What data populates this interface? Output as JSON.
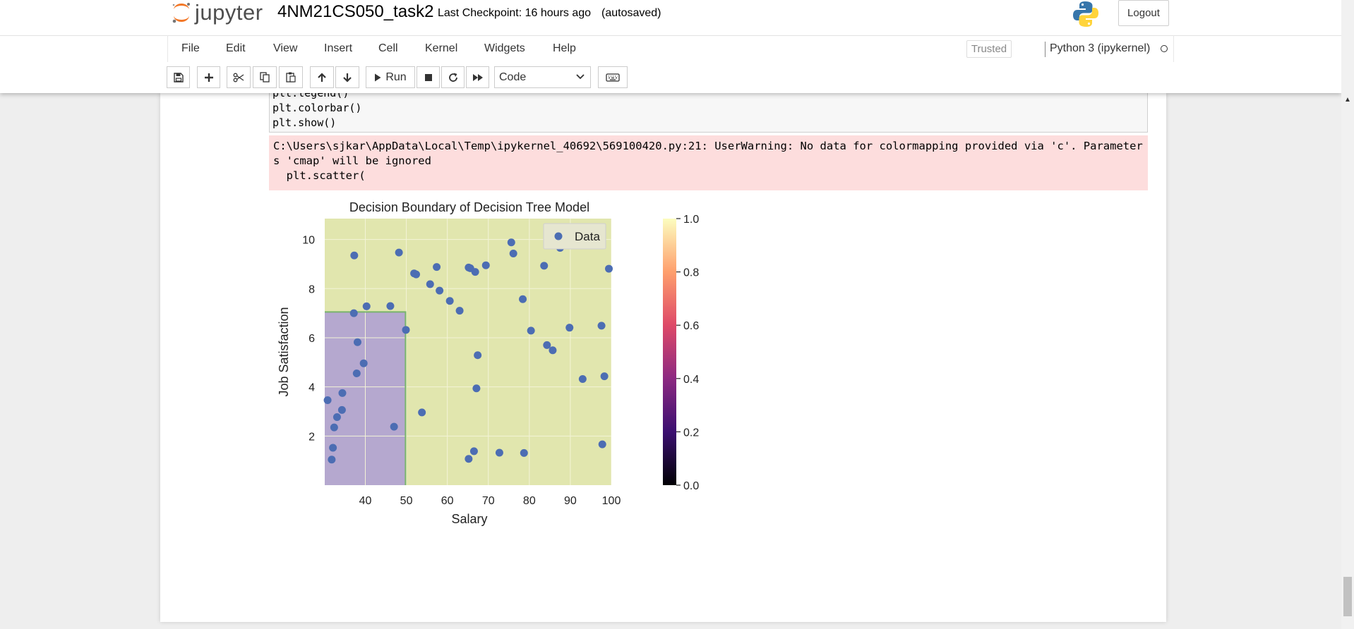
{
  "header": {
    "logo_text": "jupyter",
    "notebook_name": "4NM21CS050_task2",
    "checkpoint": "Last Checkpoint: 16 hours ago",
    "autosave": "(autosaved)",
    "logout_label": "Logout"
  },
  "menu": {
    "items": [
      "File",
      "Edit",
      "View",
      "Insert",
      "Cell",
      "Kernel",
      "Widgets",
      "Help"
    ],
    "trusted": "Trusted",
    "kernel": "Python 3 (ipykernel)"
  },
  "toolbar": {
    "run_label": "Run",
    "cell_type": "Code",
    "icons": [
      "save-icon",
      "plus-icon",
      "cut-icon",
      "copy-icon",
      "paste-icon",
      "arrow-up-icon",
      "arrow-down-icon",
      "run-icon",
      "stop-icon",
      "restart-icon",
      "fast-forward-icon",
      "keyboard-icon"
    ]
  },
  "cell": {
    "code_lines": [
      "plt.legend()",
      "plt.colorbar()",
      "plt.show()"
    ],
    "stderr": "C:\\Users\\sjkar\\AppData\\Local\\Temp\\ipykernel_40692\\569100420.py:21: UserWarning: No data for colormapping provided via 'c'. Parameters 'cmap' will be ignored\n  plt.scatter("
  },
  "chart_data": {
    "type": "scatter",
    "title": "Decision Boundary of Decision Tree Model",
    "xlabel": "Salary",
    "ylabel": "Job Satisfaction",
    "xlim": [
      30.1,
      100
    ],
    "ylim": [
      0,
      10.85
    ],
    "xticks": [
      40,
      50,
      60,
      70,
      80,
      90,
      100
    ],
    "yticks": [
      2,
      4,
      6,
      8,
      10
    ],
    "legend": {
      "label": "Data",
      "position": "upper right"
    },
    "grid": true,
    "regions": [
      {
        "x": [
          30.1,
          49.8
        ],
        "y": [
          0,
          7.05
        ],
        "color": "#b5a8cf"
      },
      {
        "x": [
          30.1,
          100
        ],
        "y": [
          0,
          10.85
        ],
        "color": "#e1e6ae"
      }
    ],
    "boundary_color": "#78b46b",
    "marker_color": "#4c6db3",
    "points": [
      [
        37.3,
        9.35
      ],
      [
        48.2,
        9.47
      ],
      [
        51.9,
        8.62
      ],
      [
        52.4,
        8.58
      ],
      [
        55.8,
        8.18
      ],
      [
        57.4,
        8.88
      ],
      [
        58.1,
        7.92
      ],
      [
        60.6,
        7.5
      ],
      [
        63.0,
        7.1
      ],
      [
        65.2,
        8.86
      ],
      [
        65.6,
        8.83
      ],
      [
        66.8,
        8.68
      ],
      [
        69.4,
        8.95
      ],
      [
        75.6,
        9.88
      ],
      [
        76.1,
        9.43
      ],
      [
        78.4,
        7.57
      ],
      [
        80.4,
        6.29
      ],
      [
        83.6,
        8.93
      ],
      [
        87.5,
        9.66
      ],
      [
        99.4,
        8.81
      ],
      [
        37.2,
        7.0
      ],
      [
        40.3,
        7.28
      ],
      [
        46.1,
        7.29
      ],
      [
        49.9,
        6.32
      ],
      [
        38.1,
        5.82
      ],
      [
        39.6,
        4.96
      ],
      [
        37.9,
        4.55
      ],
      [
        34.4,
        3.75
      ],
      [
        30.8,
        3.46
      ],
      [
        34.3,
        3.06
      ],
      [
        33.1,
        2.77
      ],
      [
        32.4,
        2.35
      ],
      [
        47.0,
        2.38
      ],
      [
        53.8,
        2.96
      ],
      [
        32.1,
        1.52
      ],
      [
        31.8,
        1.04
      ],
      [
        65.2,
        1.07
      ],
      [
        66.5,
        1.38
      ],
      [
        72.7,
        1.32
      ],
      [
        78.7,
        1.31
      ],
      [
        84.3,
        5.7
      ],
      [
        85.7,
        5.49
      ],
      [
        89.8,
        6.41
      ],
      [
        67.4,
        5.29
      ],
      [
        67.1,
        3.94
      ],
      [
        93.0,
        4.32
      ],
      [
        97.6,
        6.49
      ],
      [
        98.3,
        4.43
      ],
      [
        97.8,
        1.66
      ]
    ],
    "colorbar": {
      "range": [
        0.0,
        1.0
      ],
      "ticks": [
        "0.0",
        "0.2",
        "0.4",
        "0.6",
        "0.8",
        "1.0"
      ],
      "colors": [
        "#000004",
        "#3b0f70",
        "#8c2981",
        "#de4968",
        "#fe9f6d",
        "#fcfdbf"
      ]
    }
  }
}
